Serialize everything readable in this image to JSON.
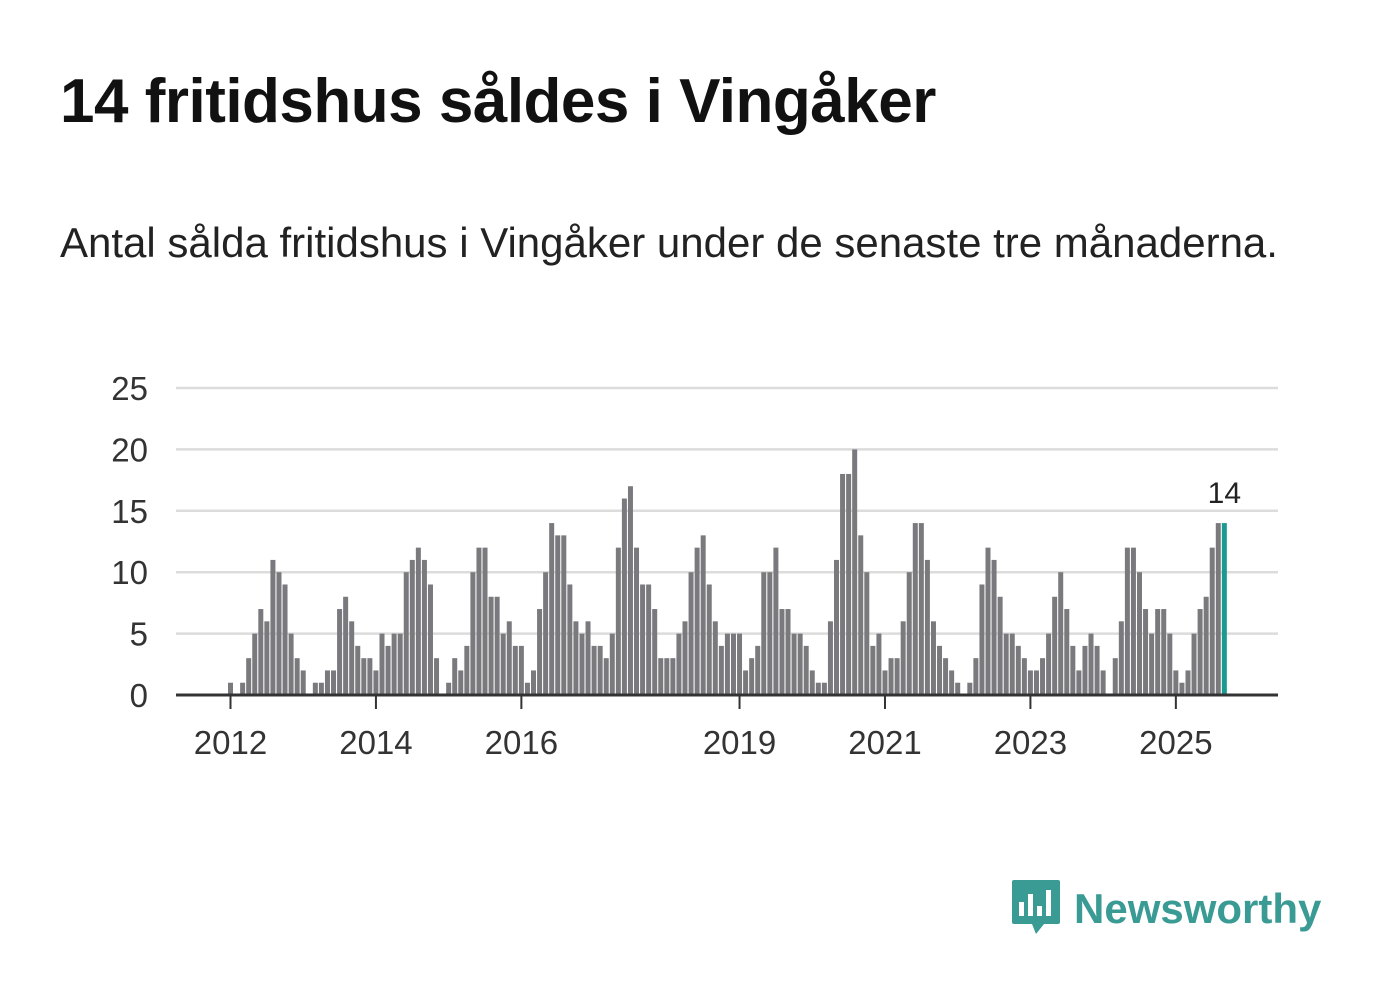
{
  "header": {
    "title": "14 fritidshus såldes i Vingåker",
    "subtitle": "Antal sålda fritidshus i Vingåker under de senaste tre månaderna."
  },
  "brand": {
    "name": "Newsworthy",
    "logo_icon": "bar-chart-speech-bubble-icon",
    "color": "#3a9a94"
  },
  "chart_data": {
    "type": "bar",
    "title": "",
    "xlabel": "",
    "ylabel": "",
    "ylim": [
      0,
      25
    ],
    "yticks": [
      "0",
      "5",
      "10",
      "15",
      "20",
      "25"
    ],
    "grid": true,
    "bar_color": "#7a7a7e",
    "highlight_color": "#1a9a90",
    "highlight_label": "14",
    "x_ticks": [
      {
        "label": "2012",
        "index": 4
      },
      {
        "label": "2014",
        "index": 28
      },
      {
        "label": "2016",
        "index": 52
      },
      {
        "label": "2019",
        "index": 88
      },
      {
        "label": "2021",
        "index": 112
      },
      {
        "label": "2023",
        "index": 136
      },
      {
        "label": "2025",
        "index": 160
      }
    ],
    "values": [
      0,
      0,
      0,
      0,
      1,
      0,
      1,
      3,
      5,
      7,
      6,
      11,
      10,
      9,
      5,
      3,
      2,
      0,
      1,
      1,
      2,
      2,
      7,
      8,
      6,
      4,
      3,
      3,
      2,
      5,
      4,
      5,
      5,
      10,
      11,
      12,
      11,
      9,
      3,
      0,
      1,
      3,
      2,
      4,
      10,
      12,
      12,
      8,
      8,
      5,
      6,
      4,
      4,
      1,
      2,
      7,
      10,
      14,
      13,
      13,
      9,
      6,
      5,
      6,
      4,
      4,
      3,
      5,
      12,
      16,
      17,
      12,
      9,
      9,
      7,
      3,
      3,
      3,
      5,
      6,
      10,
      12,
      13,
      9,
      6,
      4,
      5,
      5,
      5,
      2,
      3,
      4,
      10,
      10,
      12,
      7,
      7,
      5,
      5,
      4,
      2,
      1,
      1,
      6,
      11,
      18,
      18,
      20,
      13,
      10,
      4,
      5,
      2,
      3,
      3,
      6,
      10,
      14,
      14,
      11,
      6,
      4,
      3,
      2,
      1,
      0,
      1,
      3,
      9,
      12,
      11,
      8,
      5,
      5,
      4,
      3,
      2,
      2,
      3,
      5,
      8,
      10,
      7,
      4,
      2,
      4,
      5,
      4,
      2,
      0,
      3,
      6,
      12,
      12,
      10,
      7,
      5,
      7,
      7,
      5,
      2,
      1,
      2,
      5,
      7,
      8,
      12,
      14,
      14
    ]
  }
}
